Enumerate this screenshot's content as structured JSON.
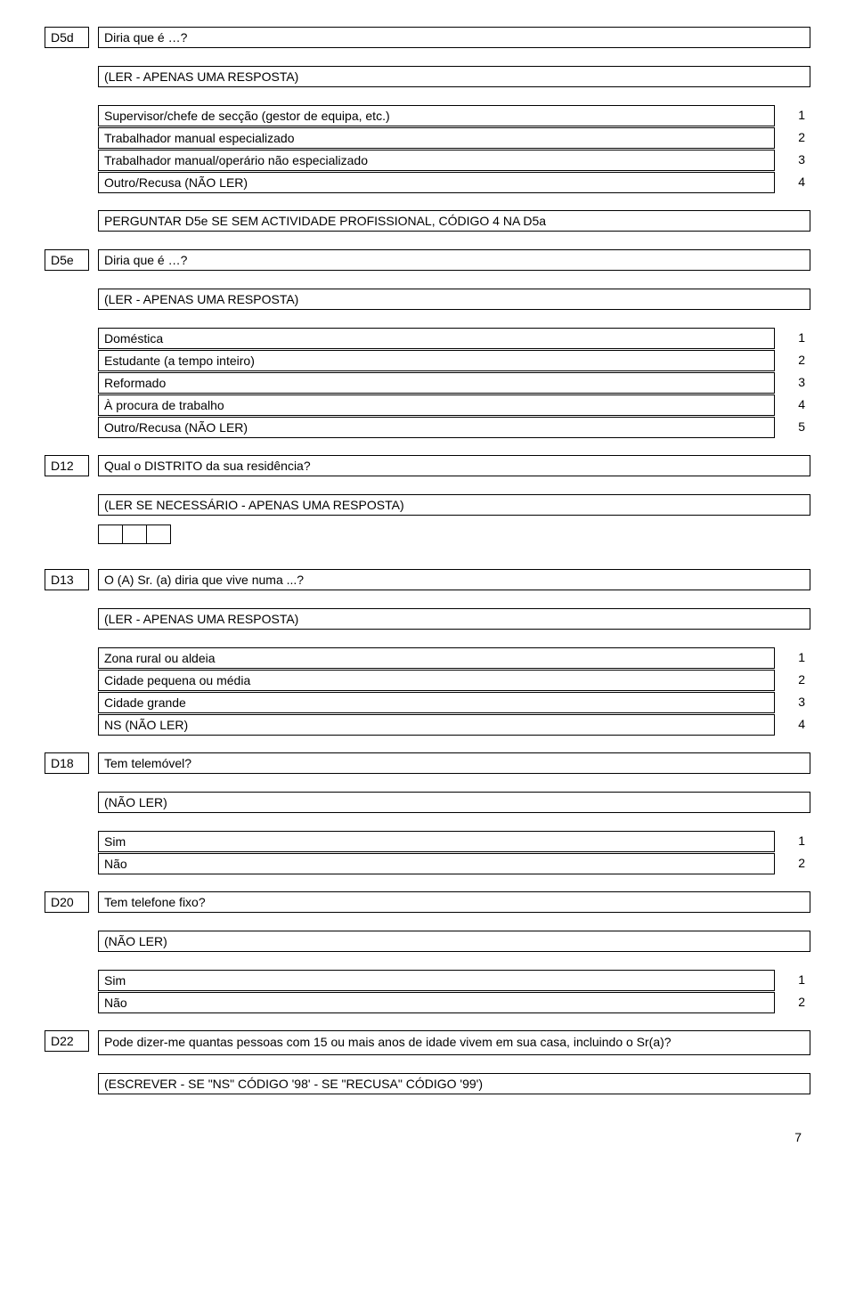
{
  "page_number": "7",
  "q_d5d": {
    "code": "D5d",
    "text": "Diria que é …?",
    "instr": "(LER - APENAS UMA RESPOSTA)",
    "options": [
      {
        "label": "Supervisor/chefe de secção (gestor de equipa, etc.)",
        "code": "1"
      },
      {
        "label": "Trabalhador manual especializado",
        "code": "2"
      },
      {
        "label": "Trabalhador manual/operário não especializado",
        "code": "3"
      },
      {
        "label": "Outro/Recusa (NÃO LER)",
        "code": "4"
      }
    ],
    "postinstr": "PERGUNTAR D5e SE SEM ACTIVIDADE PROFISSIONAL, CÓDIGO 4 NA D5a"
  },
  "q_d5e": {
    "code": "D5e",
    "text": "Diria que é …?",
    "instr": "(LER - APENAS UMA RESPOSTA)",
    "options": [
      {
        "label": "Doméstica",
        "code": "1"
      },
      {
        "label": "Estudante (a tempo inteiro)",
        "code": "2"
      },
      {
        "label": "Reformado",
        "code": "3"
      },
      {
        "label": "À procura de trabalho",
        "code": "4"
      },
      {
        "label": "Outro/Recusa (NÃO LER)",
        "code": "5"
      }
    ]
  },
  "q_d12": {
    "code": "D12",
    "text": "Qual o DISTRITO da sua residência?",
    "instr": "(LER SE NECESSÁRIO - APENAS UMA RESPOSTA)"
  },
  "q_d13": {
    "code": "D13",
    "text": "O (A) Sr. (a) diria que vive numa ...?",
    "instr": "(LER - APENAS UMA RESPOSTA)",
    "options": [
      {
        "label": "Zona rural ou aldeia",
        "code": "1"
      },
      {
        "label": "Cidade pequena ou média",
        "code": "2"
      },
      {
        "label": "Cidade grande",
        "code": "3"
      },
      {
        "label": "NS (NÃO LER)",
        "code": "4"
      }
    ]
  },
  "q_d18": {
    "code": "D18",
    "text": "Tem telemóvel?",
    "instr": "(NÃO LER)",
    "options": [
      {
        "label": "Sim",
        "code": "1"
      },
      {
        "label": "Não",
        "code": "2"
      }
    ]
  },
  "q_d20": {
    "code": "D20",
    "text": "Tem telefone fixo?",
    "instr": "(NÃO LER)",
    "options": [
      {
        "label": "Sim",
        "code": "1"
      },
      {
        "label": "Não",
        "code": "2"
      }
    ]
  },
  "q_d22": {
    "code": "D22",
    "text": "Pode dizer-me quantas pessoas com 15 ou mais anos de idade vivem em sua casa, incluindo o Sr(a)?",
    "instr": "(ESCREVER - SE \"NS\" CÓDIGO '98' - SE \"RECUSA\" CÓDIGO '99')"
  }
}
